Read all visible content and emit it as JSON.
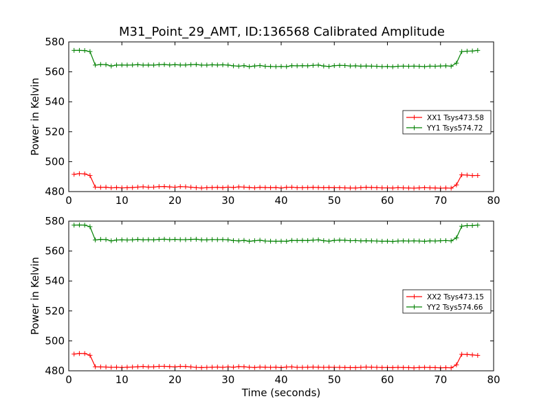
{
  "title": "M31_Point_29_AMT, ID:136568 Calibrated Amplitude",
  "colors": {
    "xx": "#ff0000",
    "yy": "#008000"
  },
  "chart_data": [
    {
      "type": "line",
      "xlabel": "",
      "ylabel": "Power in Kelvin",
      "xlim": [
        0,
        80
      ],
      "ylim": [
        480,
        580
      ],
      "xticks": [
        "0",
        "10",
        "20",
        "30",
        "40",
        "50",
        "60",
        "70",
        "80"
      ],
      "yticks": [
        "480",
        "500",
        "520",
        "540",
        "560",
        "580"
      ],
      "legend_position": "center-right",
      "x": [
        1,
        2,
        3,
        4,
        5,
        6,
        7,
        8,
        9,
        10,
        11,
        12,
        13,
        14,
        15,
        16,
        17,
        18,
        19,
        20,
        21,
        22,
        23,
        24,
        25,
        26,
        27,
        28,
        29,
        30,
        31,
        32,
        33,
        34,
        35,
        36,
        37,
        38,
        39,
        40,
        41,
        42,
        43,
        44,
        45,
        46,
        47,
        48,
        49,
        50,
        51,
        52,
        53,
        54,
        55,
        56,
        57,
        58,
        59,
        60,
        61,
        62,
        63,
        64,
        65,
        66,
        67,
        68,
        69,
        70,
        71,
        72,
        73,
        74,
        75,
        76,
        77
      ],
      "series": [
        {
          "name": "XX1 Tsys473.58",
          "color": "#ff0000",
          "values": [
            491.5,
            492.0,
            491.8,
            490.7,
            483.0,
            482.8,
            482.9,
            482.5,
            482.7,
            482.5,
            482.6,
            482.7,
            483.0,
            483.2,
            482.9,
            483.0,
            483.3,
            483.4,
            483.1,
            482.9,
            483.3,
            483.2,
            482.9,
            482.6,
            482.4,
            482.6,
            482.7,
            482.8,
            482.6,
            483.0,
            482.7,
            483.1,
            483.0,
            482.7,
            482.5,
            482.8,
            482.7,
            482.6,
            482.7,
            482.4,
            482.8,
            482.9,
            482.6,
            482.6,
            482.7,
            482.8,
            482.7,
            482.6,
            482.7,
            482.6,
            482.6,
            482.5,
            482.4,
            482.4,
            482.6,
            482.8,
            482.7,
            482.6,
            482.5,
            482.5,
            482.4,
            482.6,
            482.5,
            482.4,
            482.3,
            482.5,
            482.6,
            482.5,
            482.4,
            482.3,
            482.4,
            482.3,
            484.5,
            491.2,
            491.0,
            490.7,
            490.8
          ]
        },
        {
          "name": "YY1 Tsys574.72",
          "color": "#008000",
          "values": [
            574.3,
            574.3,
            574.2,
            573.5,
            564.5,
            564.9,
            564.8,
            563.9,
            564.5,
            564.6,
            564.5,
            564.6,
            564.8,
            564.5,
            564.6,
            564.5,
            564.8,
            564.9,
            564.6,
            564.8,
            564.6,
            564.6,
            564.8,
            564.9,
            564.5,
            564.5,
            564.7,
            564.6,
            564.7,
            564.5,
            564.0,
            563.8,
            564.1,
            563.5,
            563.9,
            564.2,
            563.7,
            563.6,
            563.5,
            563.6,
            563.5,
            564.1,
            564.0,
            564.1,
            564.0,
            564.3,
            564.5,
            563.9,
            563.6,
            564.1,
            564.3,
            564.2,
            563.9,
            564.0,
            563.8,
            563.9,
            563.8,
            563.7,
            563.5,
            563.6,
            563.4,
            563.7,
            563.8,
            563.7,
            563.8,
            563.7,
            563.5,
            563.8,
            563.7,
            563.9,
            564.0,
            563.8,
            565.8,
            573.5,
            573.8,
            573.9,
            574.3
          ]
        }
      ]
    },
    {
      "type": "line",
      "xlabel": "Time (seconds)",
      "ylabel": "Power in Kelvin",
      "xlim": [
        0,
        80
      ],
      "ylim": [
        480,
        580
      ],
      "xticks": [
        "0",
        "10",
        "20",
        "30",
        "40",
        "50",
        "60",
        "70",
        "80"
      ],
      "yticks": [
        "480",
        "500",
        "520",
        "540",
        "560",
        "580"
      ],
      "legend_position": "center-right",
      "x": [
        1,
        2,
        3,
        4,
        5,
        6,
        7,
        8,
        9,
        10,
        11,
        12,
        13,
        14,
        15,
        16,
        17,
        18,
        19,
        20,
        21,
        22,
        23,
        24,
        25,
        26,
        27,
        28,
        29,
        30,
        31,
        32,
        33,
        34,
        35,
        36,
        37,
        38,
        39,
        40,
        41,
        42,
        43,
        44,
        45,
        46,
        47,
        48,
        49,
        50,
        51,
        52,
        53,
        54,
        55,
        56,
        57,
        58,
        59,
        60,
        61,
        62,
        63,
        64,
        65,
        66,
        67,
        68,
        69,
        70,
        71,
        72,
        73,
        74,
        75,
        76,
        77
      ],
      "series": [
        {
          "name": "XX2 Tsys473.15",
          "color": "#ff0000",
          "values": [
            491.2,
            491.6,
            491.5,
            490.4,
            482.7,
            482.6,
            482.5,
            482.3,
            482.4,
            482.2,
            482.4,
            482.5,
            482.7,
            482.9,
            482.6,
            482.7,
            483.0,
            483.0,
            482.8,
            482.6,
            483.0,
            482.9,
            482.6,
            482.3,
            482.1,
            482.3,
            482.4,
            482.5,
            482.3,
            482.6,
            482.4,
            482.8,
            482.7,
            482.4,
            482.2,
            482.5,
            482.4,
            482.3,
            482.4,
            482.1,
            482.5,
            482.6,
            482.3,
            482.3,
            482.4,
            482.5,
            482.4,
            482.3,
            482.4,
            482.3,
            482.3,
            482.2,
            482.1,
            482.1,
            482.3,
            482.5,
            482.4,
            482.3,
            482.2,
            482.2,
            482.1,
            482.3,
            482.2,
            482.1,
            482.0,
            482.2,
            482.3,
            482.2,
            482.1,
            482.0,
            482.1,
            482.0,
            484.0,
            491.0,
            490.9,
            490.6,
            490.3
          ]
        },
        {
          "name": "YY2 Tsys574.66",
          "color": "#008000",
          "values": [
            577.3,
            577.4,
            577.3,
            576.3,
            567.4,
            567.8,
            567.7,
            566.8,
            567.4,
            567.5,
            567.4,
            567.5,
            567.8,
            567.5,
            567.6,
            567.5,
            567.8,
            567.9,
            567.6,
            567.8,
            567.6,
            567.6,
            567.8,
            567.9,
            567.5,
            567.5,
            567.7,
            567.6,
            567.7,
            567.5,
            567.0,
            566.8,
            567.1,
            566.5,
            566.9,
            567.2,
            566.7,
            566.6,
            566.5,
            566.6,
            566.5,
            567.1,
            567.0,
            567.1,
            567.0,
            567.3,
            567.5,
            566.9,
            566.6,
            567.1,
            567.3,
            567.2,
            566.9,
            567.0,
            566.8,
            566.9,
            566.8,
            566.7,
            566.5,
            566.6,
            566.4,
            566.7,
            566.8,
            566.7,
            566.8,
            566.7,
            566.5,
            566.8,
            566.7,
            566.9,
            567.0,
            566.8,
            568.8,
            576.6,
            577.0,
            577.0,
            577.3
          ]
        }
      ]
    }
  ]
}
